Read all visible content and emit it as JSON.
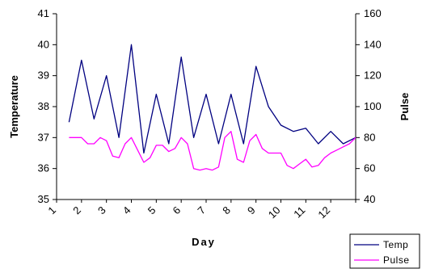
{
  "chart_data": {
    "type": "line",
    "xlabel": "Day",
    "ylabel": "Temperature",
    "y2label": "Pulse",
    "x_ticks": [
      "1",
      "2",
      "3",
      "4",
      "5",
      "6",
      "7",
      "8",
      "9",
      "10",
      "11",
      "12"
    ],
    "xlim": [
      1,
      13
    ],
    "ylim": [
      35,
      41
    ],
    "y_ticks": [
      "35",
      "36",
      "37",
      "38",
      "39",
      "40",
      "41"
    ],
    "y2lim": [
      40,
      160
    ],
    "y2_ticks": [
      "40",
      "60",
      "80",
      "100",
      "120",
      "140",
      "160"
    ],
    "grid": false,
    "legend_position": "bottom-right",
    "series": [
      {
        "name": "Temp",
        "axis": "left",
        "color": "#000080",
        "x": [
          1.5,
          2,
          2.5,
          3,
          3.5,
          4,
          4.5,
          5,
          5.5,
          6,
          6.5,
          7,
          7.5,
          8,
          8.5,
          9,
          9.5,
          10,
          10.5,
          11,
          11.5,
          12,
          12.5,
          13
        ],
        "values": [
          37.5,
          39.5,
          37.6,
          39.0,
          37.0,
          40.0,
          36.5,
          38.4,
          36.8,
          39.6,
          37.0,
          38.4,
          36.8,
          38.4,
          36.8,
          39.3,
          38.0,
          37.4,
          37.2,
          37.3,
          36.8,
          37.2,
          36.8,
          37.0
        ]
      },
      {
        "name": "Pulse",
        "axis": "right",
        "color": "#ff00ff",
        "x": [
          1.5,
          1.75,
          2,
          2.25,
          2.5,
          2.75,
          3,
          3.25,
          3.5,
          3.75,
          4,
          4.25,
          4.5,
          4.75,
          5,
          5.25,
          5.5,
          5.75,
          6,
          6.25,
          6.5,
          6.75,
          7,
          7.25,
          7.5,
          7.75,
          8,
          8.25,
          8.5,
          8.75,
          9,
          9.25,
          9.5,
          9.75,
          10,
          10.25,
          10.5,
          10.75,
          11,
          11.25,
          11.5,
          11.75,
          12,
          12.25,
          12.5,
          12.75,
          13
        ],
        "values": [
          80,
          80,
          80,
          76,
          76,
          80,
          78,
          68,
          67,
          76,
          80,
          72,
          64,
          67,
          75,
          75,
          71,
          73,
          80,
          76,
          60,
          59,
          60,
          59,
          61,
          80,
          84,
          66,
          64,
          78,
          82,
          73,
          70,
          70,
          70,
          62,
          60,
          63,
          66,
          61,
          62,
          67,
          70,
          72,
          74,
          76,
          80
        ]
      }
    ]
  }
}
